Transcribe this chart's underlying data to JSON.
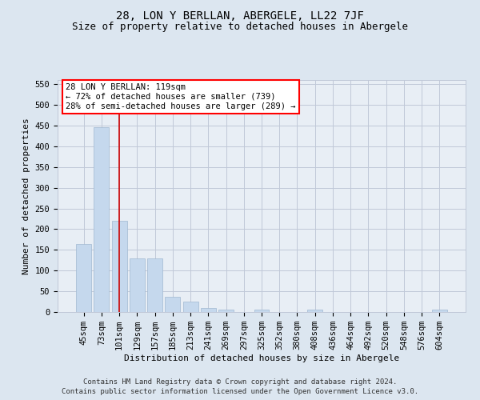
{
  "title": "28, LON Y BERLLAN, ABERGELE, LL22 7JF",
  "subtitle": "Size of property relative to detached houses in Abergele",
  "xlabel": "Distribution of detached houses by size in Abergele",
  "ylabel": "Number of detached properties",
  "footer_line1": "Contains HM Land Registry data © Crown copyright and database right 2024.",
  "footer_line2": "Contains public sector information licensed under the Open Government Licence v3.0.",
  "bar_labels": [
    "45sqm",
    "73sqm",
    "101sqm",
    "129sqm",
    "157sqm",
    "185sqm",
    "213sqm",
    "241sqm",
    "269sqm",
    "297sqm",
    "325sqm",
    "352sqm",
    "380sqm",
    "408sqm",
    "436sqm",
    "464sqm",
    "492sqm",
    "520sqm",
    "548sqm",
    "576sqm",
    "604sqm"
  ],
  "bar_values": [
    165,
    447,
    220,
    130,
    130,
    37,
    25,
    10,
    6,
    0,
    5,
    0,
    0,
    5,
    0,
    0,
    0,
    0,
    0,
    0,
    5
  ],
  "bar_color": "#c5d8ed",
  "bar_edge_color": "#a0b8d0",
  "annotation_line1": "28 LON Y BERLLAN: 119sqm",
  "annotation_line2": "← 72% of detached houses are smaller (739)",
  "annotation_line3": "28% of semi-detached houses are larger (289) →",
  "vline_x": 2.0,
  "vline_color": "#cc0000",
  "ylim": [
    0,
    560
  ],
  "yticks": [
    0,
    50,
    100,
    150,
    200,
    250,
    300,
    350,
    400,
    450,
    500,
    550
  ],
  "grid_color": "#c0c8d8",
  "background_color": "#dce6f0",
  "plot_bg_color": "#e8eef5",
  "title_fontsize": 10,
  "subtitle_fontsize": 9,
  "label_fontsize": 8,
  "tick_fontsize": 7.5,
  "annotation_fontsize": 7.5,
  "footer_fontsize": 6.5
}
